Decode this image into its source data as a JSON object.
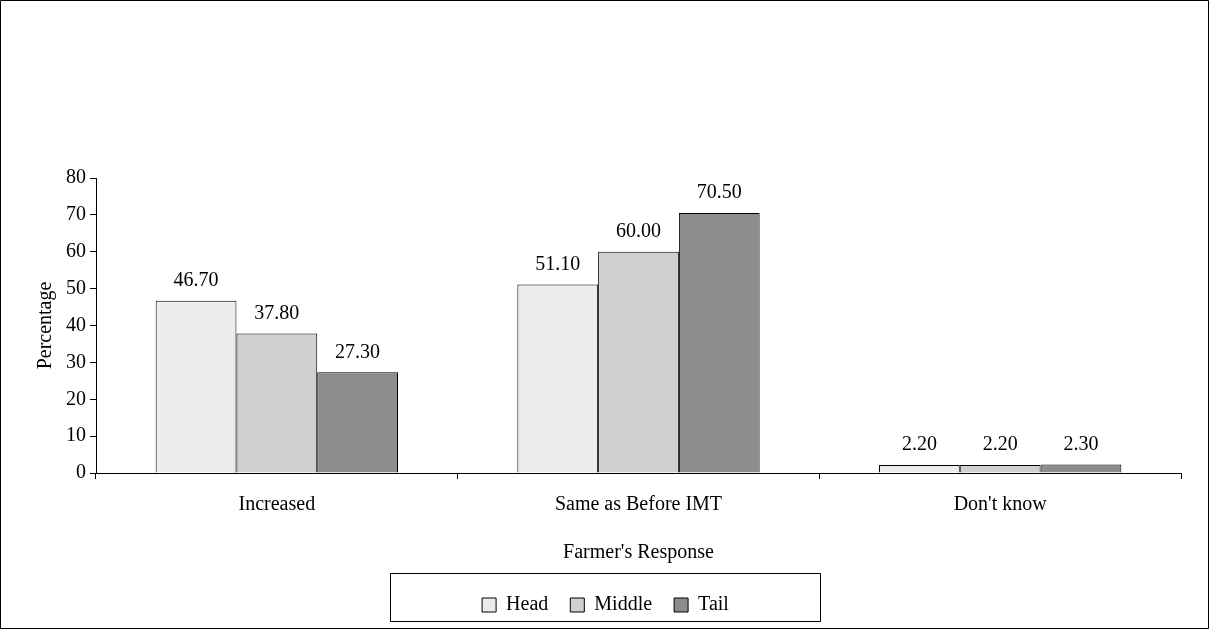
{
  "chart_data": {
    "type": "bar",
    "xlabel": "Farmer's Response",
    "ylabel": "Percentage",
    "categories": [
      "Increased",
      "Same as Before IMT",
      "Don't know"
    ],
    "series": [
      {
        "name": "Head",
        "color": "#ececec",
        "values": [
          46.7,
          51.1,
          2.2
        ],
        "value_labels": [
          "46.70",
          "51.10",
          "2.20"
        ]
      },
      {
        "name": "Middle",
        "color": "#d0d0d0",
        "values": [
          37.8,
          60.0,
          2.2
        ],
        "value_labels": [
          "37.80",
          "60.00",
          "2.20"
        ]
      },
      {
        "name": "Tail",
        "color": "#8c8c8c",
        "values": [
          27.3,
          70.5,
          2.3
        ],
        "value_labels": [
          "27.30",
          "70.50",
          "2.30"
        ]
      }
    ],
    "ylim": [
      0,
      80
    ],
    "yticks": [
      0,
      10,
      20,
      30,
      40,
      50,
      60,
      70,
      80
    ],
    "grid": false,
    "legend": "bottom"
  }
}
